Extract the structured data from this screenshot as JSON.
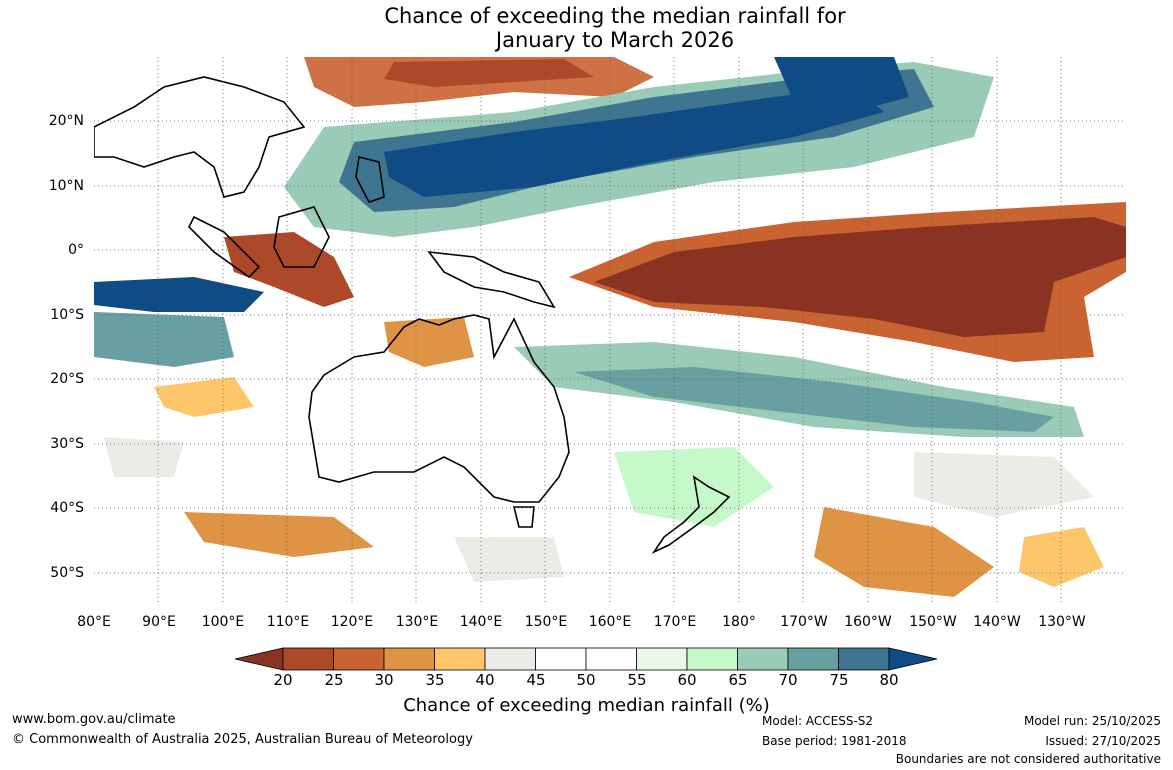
{
  "title": {
    "line1": "Chance of exceeding the median rainfall for",
    "line2": "January to March 2026"
  },
  "map": {
    "lat_labels": [
      "20°N",
      "10°N",
      "0°",
      "10°S",
      "20°S",
      "30°S",
      "40°S",
      "50°S"
    ],
    "lon_labels": [
      "80°E",
      "90°E",
      "100°E",
      "110°E",
      "120°E",
      "130°E",
      "140°E",
      "150°E",
      "160°E",
      "170°E",
      "180°",
      "170°W",
      "160°W",
      "150°W",
      "140°W",
      "130°W"
    ],
    "lon_range": [
      80,
      240
    ],
    "lat_range": [
      -55,
      30
    ],
    "grid": "dotted, every 10°"
  },
  "colorbar": {
    "ticks": [
      "20",
      "25",
      "30",
      "35",
      "40",
      "45",
      "50",
      "55",
      "60",
      "65",
      "70",
      "75",
      "80"
    ],
    "colors": [
      "#8b3322",
      "#ad4928",
      "#c96332",
      "#de9444",
      "#fdc66a",
      "#edebe6",
      "#ffffff",
      "#ffffff",
      "#e8f7e8",
      "#c6f9c9",
      "#99cbb6",
      "#68a0a2",
      "#3e7691",
      "#0f4b85"
    ],
    "label": "Chance of exceeding median rainfall (%)",
    "extends": "both"
  },
  "footer": {
    "website": "www.bom.gov.au/climate",
    "copyright": "© Commonwealth of Australia 2025, Australian Bureau of Meteorology",
    "model": "Model: ACCESS-S2",
    "base_period": "Base period: 1981-2018",
    "model_run": "Model run: 25/10/2025",
    "issued": "Issued: 27/10/2025",
    "disclaimer": "Boundaries are not considered authoritative"
  }
}
